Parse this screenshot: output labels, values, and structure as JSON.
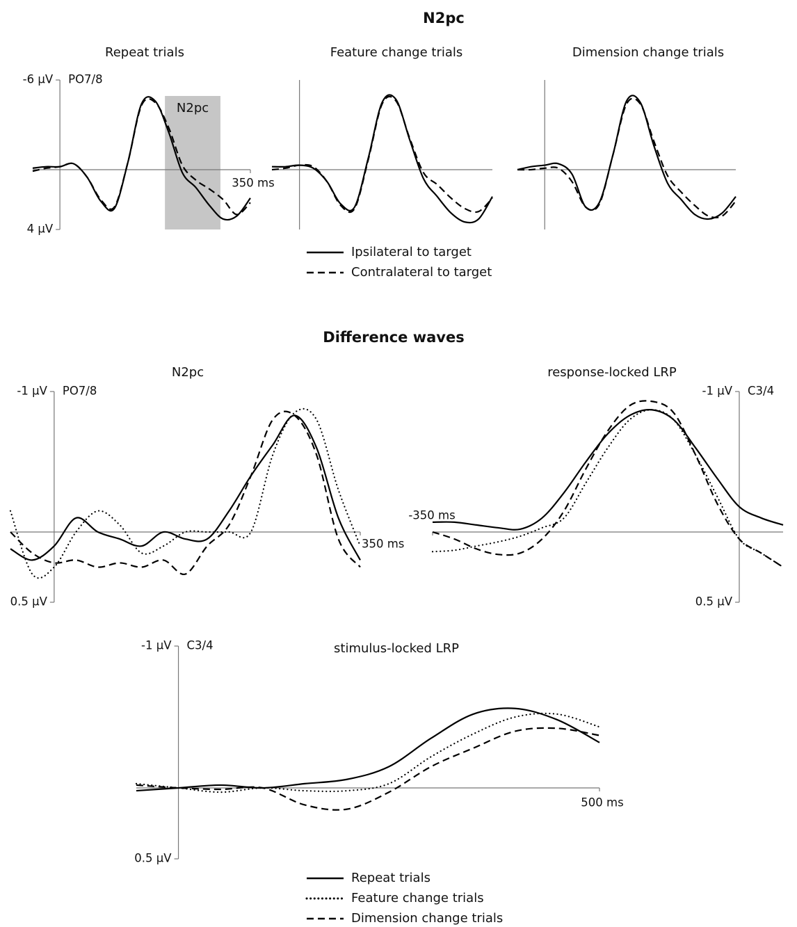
{
  "sections": [
    {
      "title": "N2pc"
    },
    {
      "title": "Difference waves"
    }
  ],
  "chart_data": [
    {
      "type": "line",
      "title": "Repeat trials",
      "channel": "PO7/8",
      "invert_y": true,
      "ylim": [
        -6,
        4
      ],
      "yticks": [
        {
          "value": -6,
          "label": "-6 µV"
        },
        {
          "value": 4,
          "label": "4 µV"
        }
      ],
      "xlim": [
        -50,
        350
      ],
      "xticks": [
        {
          "value": 350,
          "label": "350 ms"
        }
      ],
      "window": {
        "label": "N2pc",
        "range": [
          193,
          295
        ]
      },
      "x": [
        -50,
        -25,
        0,
        25,
        50,
        75,
        100,
        125,
        150,
        175,
        200,
        225,
        250,
        275,
        300,
        325,
        350
      ],
      "series": [
        {
          "name": "Ipsilateral to target",
          "color": "#000000",
          "dash": "solid",
          "values": [
            -0.1,
            -0.2,
            -0.2,
            -0.4,
            0.5,
            2.1,
            2.6,
            -0.5,
            -4.4,
            -4.6,
            -2.5,
            0.2,
            1.2,
            2.4,
            3.3,
            3.1,
            1.9
          ]
        },
        {
          "name": "Contralateral to target",
          "color": "#000000",
          "dash": "dashed",
          "values": [
            0.1,
            -0.1,
            -0.2,
            -0.4,
            0.5,
            2.0,
            2.5,
            -0.5,
            -4.3,
            -4.5,
            -2.8,
            -0.3,
            0.7,
            1.3,
            2.0,
            3.0,
            2.2
          ]
        }
      ]
    },
    {
      "type": "line",
      "title": "Feature change trials",
      "invert_y": true,
      "ylim": [
        -6,
        4
      ],
      "xlim": [
        -50,
        350
      ],
      "x": [
        -50,
        -25,
        0,
        25,
        50,
        75,
        100,
        125,
        150,
        175,
        200,
        225,
        250,
        275,
        300,
        325,
        350
      ],
      "series": [
        {
          "color": "#000000",
          "dash": "solid",
          "values": [
            -0.2,
            -0.2,
            -0.3,
            -0.1,
            0.8,
            2.3,
            2.5,
            -0.8,
            -4.5,
            -4.7,
            -2.0,
            0.6,
            1.8,
            2.9,
            3.5,
            3.3,
            1.8
          ]
        },
        {
          "color": "#000000",
          "dash": "dashed",
          "values": [
            0.0,
            -0.1,
            -0.3,
            -0.2,
            0.8,
            2.4,
            2.6,
            -0.7,
            -4.4,
            -4.6,
            -2.1,
            0.2,
            1.0,
            1.9,
            2.6,
            2.8,
            1.9
          ]
        }
      ]
    },
    {
      "type": "line",
      "title": "Dimension change trials",
      "invert_y": true,
      "ylim": [
        -6,
        4
      ],
      "xlim": [
        -50,
        350
      ],
      "x": [
        -50,
        -25,
        0,
        25,
        50,
        75,
        100,
        125,
        150,
        175,
        200,
        225,
        250,
        275,
        300,
        325,
        350
      ],
      "series": [
        {
          "color": "#000000",
          "dash": "solid",
          "values": [
            0.0,
            -0.2,
            -0.3,
            -0.4,
            0.3,
            2.5,
            2.2,
            -1.0,
            -4.6,
            -4.5,
            -1.6,
            0.9,
            2.0,
            3.0,
            3.3,
            2.9,
            1.8
          ]
        },
        {
          "color": "#000000",
          "dash": "dashed",
          "values": [
            0.0,
            0.0,
            -0.1,
            -0.1,
            0.8,
            2.5,
            2.3,
            -1.0,
            -4.4,
            -4.4,
            -1.9,
            0.4,
            1.5,
            2.4,
            3.1,
            3.1,
            2.1
          ]
        }
      ]
    },
    {
      "type": "line",
      "title": "N2pc",
      "channel": "PO7/8",
      "invert_y": true,
      "ylim": [
        -1,
        0.5
      ],
      "yticks": [
        {
          "value": -1,
          "label": "-1 µV"
        },
        {
          "value": 0.5,
          "label": "0.5 µV"
        }
      ],
      "xlim": [
        -50,
        350
      ],
      "xticks": [
        {
          "value": 350,
          "label": "350 ms"
        }
      ],
      "x": [
        -50,
        -25,
        0,
        25,
        50,
        75,
        100,
        125,
        150,
        175,
        200,
        225,
        250,
        275,
        300,
        325,
        350
      ],
      "series": [
        {
          "color": "#000000",
          "dash": "solid",
          "values": [
            0.12,
            0.2,
            0.1,
            -0.1,
            0.0,
            0.05,
            0.1,
            0.0,
            0.05,
            0.05,
            -0.15,
            -0.4,
            -0.62,
            -0.83,
            -0.6,
            -0.1,
            0.2
          ]
        },
        {
          "color": "#000000",
          "dash": "dotted",
          "values": [
            -0.15,
            0.3,
            0.25,
            0.0,
            -0.15,
            -0.05,
            0.15,
            0.1,
            0.0,
            0.0,
            0.0,
            0.0,
            -0.55,
            -0.85,
            -0.8,
            -0.3,
            0.1
          ]
        },
        {
          "color": "#000000",
          "dash": "dashed",
          "values": [
            0.0,
            0.15,
            0.22,
            0.2,
            0.25,
            0.22,
            0.25,
            0.2,
            0.3,
            0.1,
            -0.05,
            -0.4,
            -0.8,
            -0.83,
            -0.55,
            0.05,
            0.25
          ]
        }
      ]
    },
    {
      "type": "line",
      "title": "response-locked LRP",
      "channel": "C3/4",
      "invert_y": true,
      "y_axis_side": "right",
      "ylim": [
        -1,
        0.5
      ],
      "yticks": [
        {
          "value": -1,
          "label": "-1 µV"
        },
        {
          "value": 0.5,
          "label": "0.5 µV"
        }
      ],
      "xlim": [
        -350,
        50
      ],
      "xticks": [
        {
          "value": -350,
          "label": "-350 ms"
        }
      ],
      "x": [
        -350,
        -325,
        -300,
        -275,
        -250,
        -225,
        -200,
        -175,
        -150,
        -125,
        -100,
        -75,
        -50,
        -25,
        0,
        25,
        50
      ],
      "series": [
        {
          "color": "#000000",
          "dash": "solid",
          "values": [
            -0.07,
            -0.07,
            -0.05,
            -0.03,
            -0.02,
            -0.1,
            -0.28,
            -0.5,
            -0.7,
            -0.83,
            -0.87,
            -0.8,
            -0.6,
            -0.38,
            -0.18,
            -0.1,
            -0.05
          ]
        },
        {
          "color": "#000000",
          "dash": "dotted",
          "values": [
            0.14,
            0.13,
            0.1,
            0.07,
            0.03,
            -0.03,
            -0.1,
            -0.35,
            -0.6,
            -0.8,
            -0.87,
            -0.8,
            -0.55,
            -0.25,
            0.05,
            0.15,
            0.25
          ]
        },
        {
          "color": "#000000",
          "dash": "dashed",
          "values": [
            0.0,
            0.05,
            0.12,
            0.16,
            0.15,
            0.05,
            -0.15,
            -0.45,
            -0.72,
            -0.9,
            -0.93,
            -0.85,
            -0.55,
            -0.2,
            0.05,
            0.15,
            0.25
          ]
        }
      ]
    },
    {
      "type": "line",
      "title": "stimulus-locked LRP",
      "channel": "C3/4",
      "invert_y": true,
      "ylim": [
        -1,
        0.5
      ],
      "yticks": [
        {
          "value": -1,
          "label": "-1 µV"
        },
        {
          "value": 0.5,
          "label": "0.5 µV"
        }
      ],
      "xlim": [
        -50,
        500
      ],
      "xticks": [
        {
          "value": 500,
          "label": "500 ms"
        }
      ],
      "x": [
        -50,
        0,
        50,
        100,
        150,
        200,
        250,
        300,
        350,
        400,
        450,
        500
      ],
      "series": [
        {
          "name": "Repeat trials",
          "color": "#000000",
          "dash": "solid",
          "values": [
            0.02,
            0.0,
            -0.02,
            0.0,
            -0.03,
            -0.06,
            -0.15,
            -0.35,
            -0.52,
            -0.56,
            -0.48,
            -0.32
          ]
        },
        {
          "name": "Feature change trials",
          "color": "#000000",
          "dash": "dotted",
          "values": [
            -0.03,
            0.0,
            0.03,
            0.0,
            0.02,
            0.02,
            -0.03,
            -0.22,
            -0.38,
            -0.5,
            -0.52,
            -0.43
          ]
        },
        {
          "name": "Dimension change trials",
          "color": "#000000",
          "dash": "dashed",
          "values": [
            -0.02,
            0.0,
            0.01,
            0.0,
            0.12,
            0.15,
            0.03,
            -0.15,
            -0.28,
            -0.4,
            -0.42,
            -0.37
          ]
        }
      ]
    }
  ]
}
